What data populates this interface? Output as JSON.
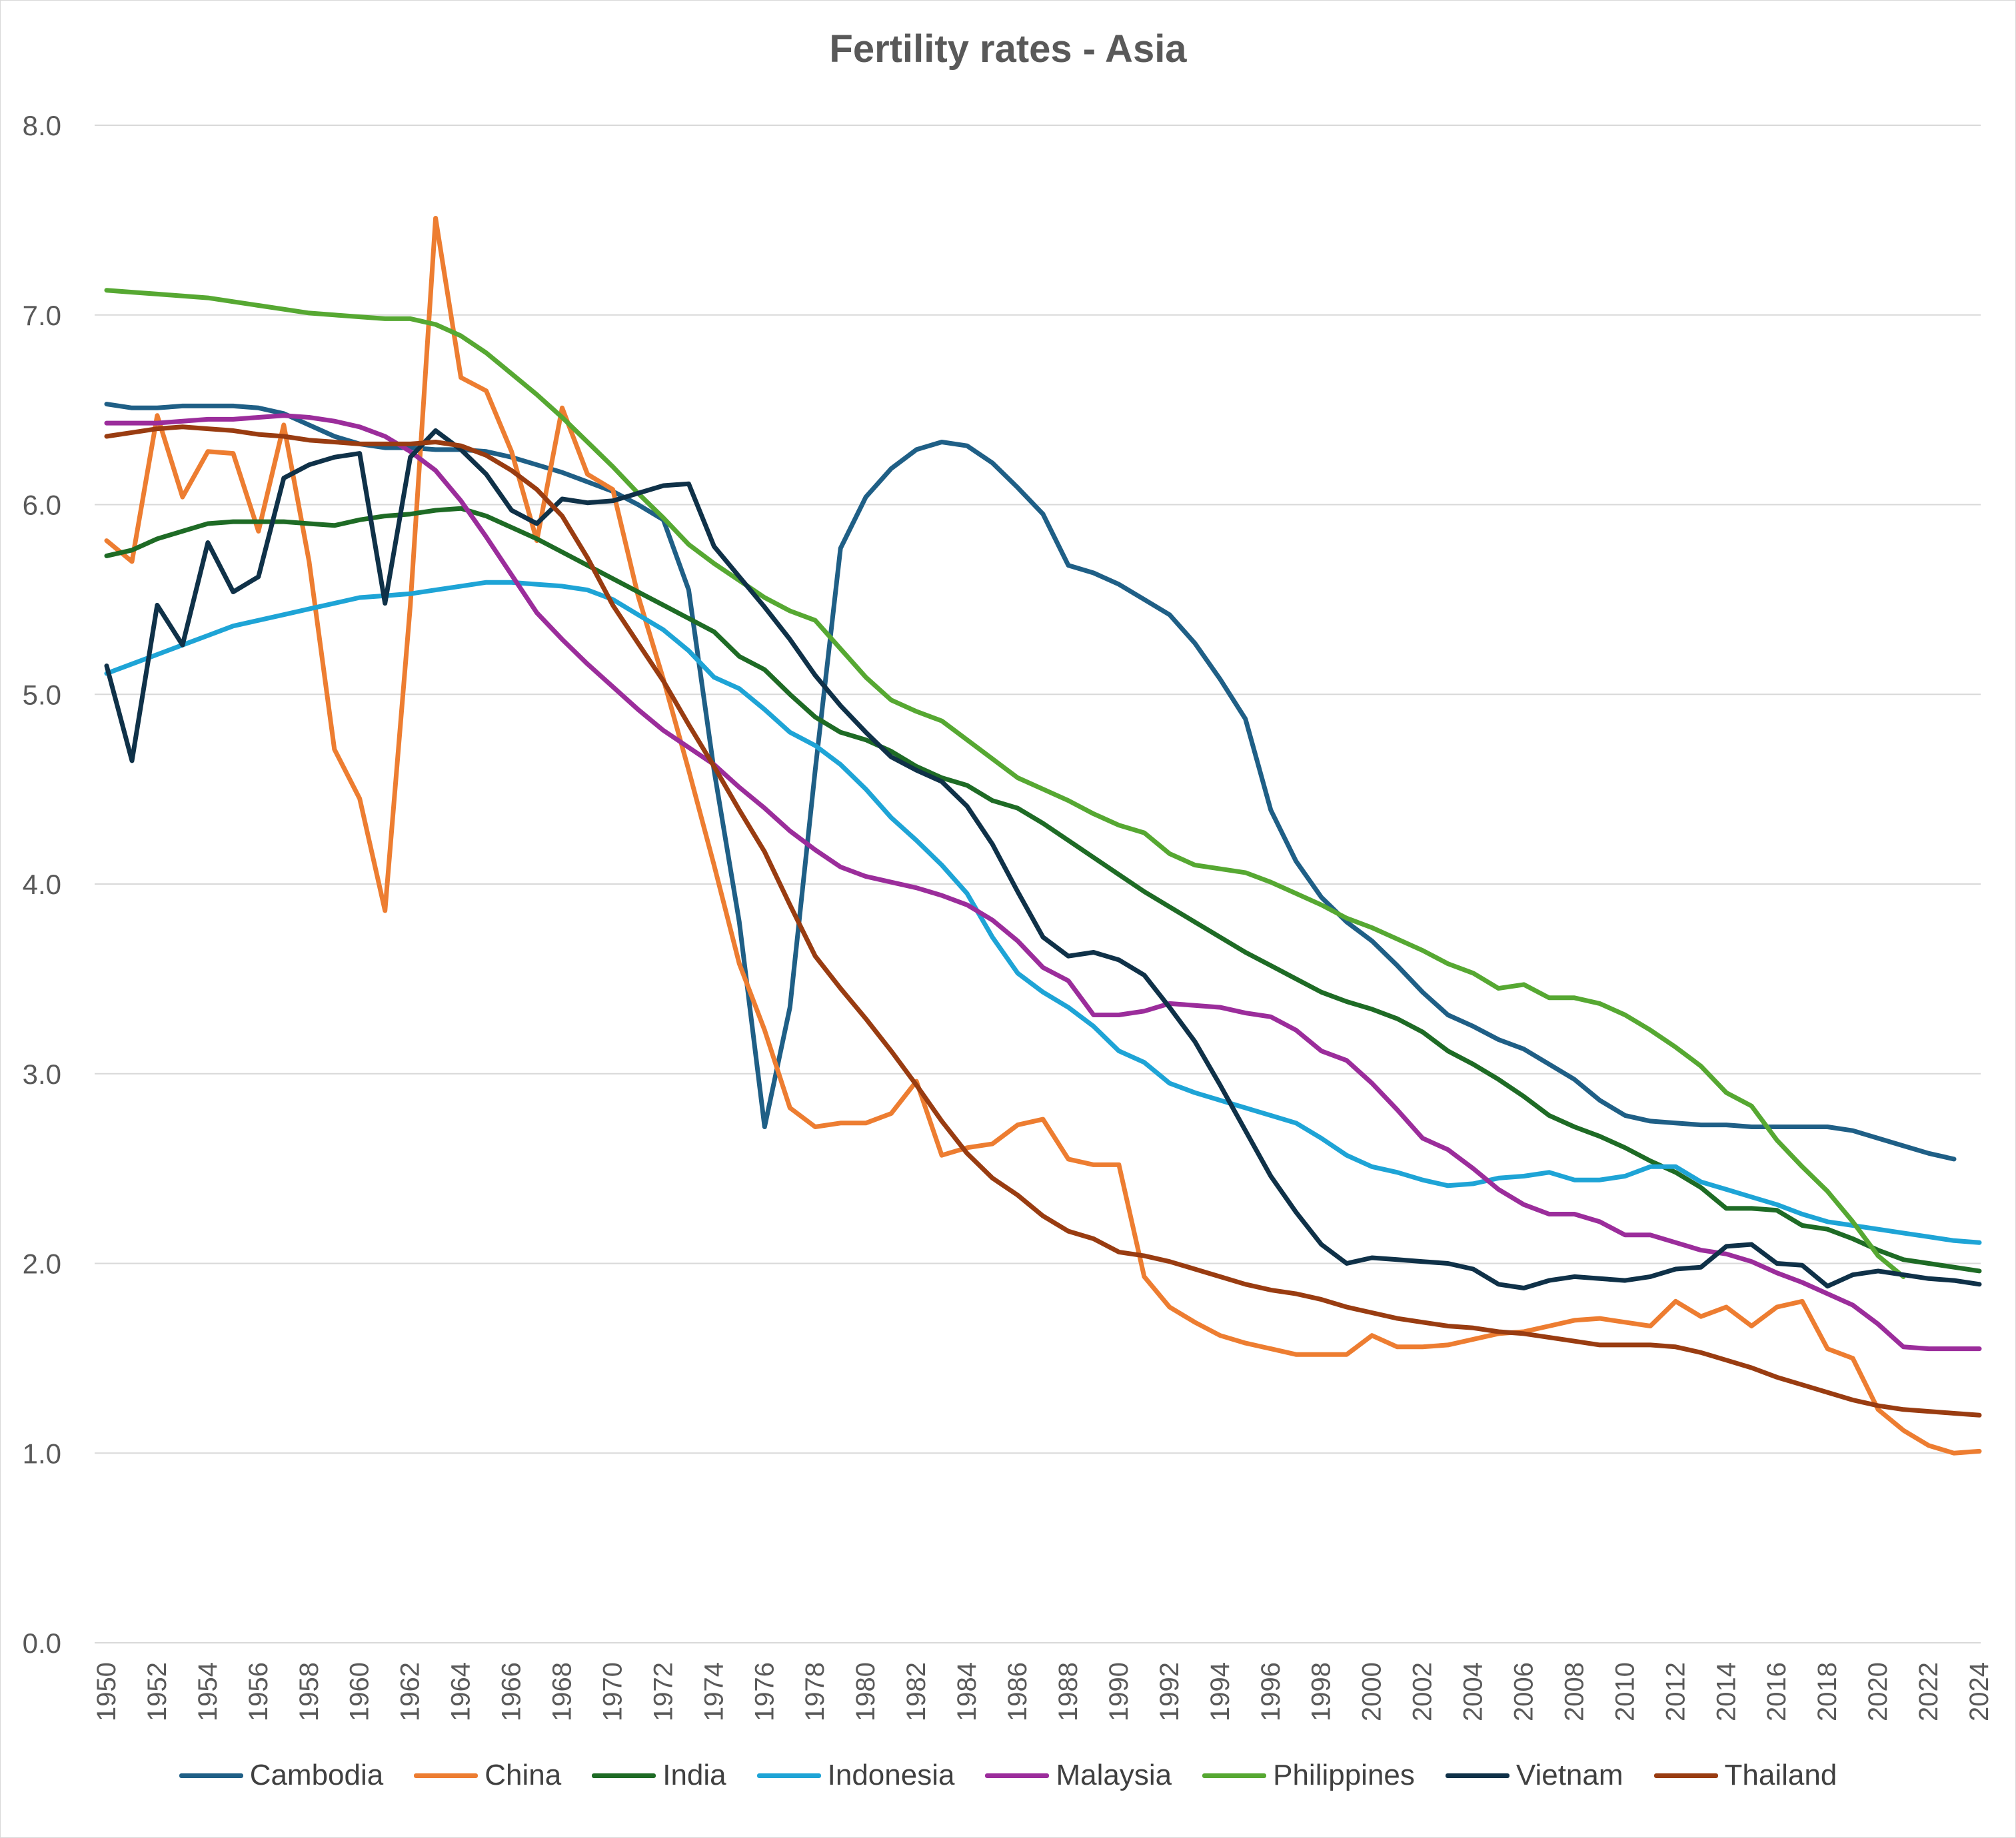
{
  "chart_data": {
    "type": "line",
    "title": "Fertility rates - Asia",
    "xlabel": "",
    "ylabel": "",
    "ylim": [
      0,
      8
    ],
    "y_ticks": [
      "0.0",
      "1.0",
      "2.0",
      "3.0",
      "4.0",
      "5.0",
      "6.0",
      "7.0",
      "8.0"
    ],
    "y_tick_values": [
      0,
      1,
      2,
      3,
      4,
      5,
      6,
      7,
      8
    ],
    "x_start": 1950,
    "x_end": 2024,
    "x_tick_labels": [
      "1950",
      "1952",
      "1954",
      "1956",
      "1958",
      "1960",
      "1962",
      "1964",
      "1966",
      "1968",
      "1970",
      "1972",
      "1974",
      "1976",
      "1978",
      "1980",
      "1982",
      "1984",
      "1986",
      "1988",
      "1990",
      "1992",
      "1994",
      "1996",
      "1998",
      "2000",
      "2002",
      "2004",
      "2006",
      "2008",
      "2010",
      "2012",
      "2014",
      "2016",
      "2018",
      "2020",
      "2022",
      "2024"
    ],
    "legend_position": "bottom",
    "grid": true,
    "series": [
      {
        "name": "Cambodia",
        "color": "#1f5f86",
        "values": [
          6.53,
          6.51,
          6.51,
          6.52,
          6.52,
          6.52,
          6.51,
          6.48,
          6.42,
          6.36,
          6.32,
          6.3,
          6.3,
          6.29,
          6.29,
          6.28,
          6.25,
          6.21,
          6.17,
          6.12,
          6.07,
          6.0,
          5.92,
          5.55,
          4.6,
          3.8,
          2.72,
          3.35,
          4.6,
          5.77,
          6.04,
          6.19,
          6.29,
          6.33,
          6.31,
          6.22,
          6.09,
          5.95,
          5.68,
          5.64,
          5.58,
          5.5,
          5.42,
          5.27,
          5.08,
          4.87,
          4.39,
          4.12,
          3.93,
          3.8,
          3.7,
          3.57,
          3.43,
          3.31,
          3.25,
          3.18,
          3.13,
          3.05,
          2.97,
          2.86,
          2.78,
          2.75,
          2.74,
          2.73,
          2.73,
          2.72,
          2.72,
          2.72,
          2.72,
          2.7,
          2.66,
          2.62,
          2.58,
          2.55
        ]
      },
      {
        "name": "China",
        "color": "#ed7d31",
        "values": [
          5.81,
          5.7,
          6.47,
          6.04,
          6.28,
          6.27,
          5.86,
          6.42,
          5.7,
          4.71,
          4.45,
          3.86,
          5.47,
          7.51,
          6.67,
          6.6,
          6.28,
          5.81,
          6.51,
          6.16,
          6.08,
          5.52,
          5.08,
          4.6,
          4.1,
          3.58,
          3.23,
          2.82,
          2.72,
          2.74,
          2.74,
          2.79,
          2.96,
          2.57,
          2.61,
          2.63,
          2.73,
          2.76,
          2.55,
          2.52,
          2.52,
          1.93,
          1.77,
          1.69,
          1.62,
          1.58,
          1.55,
          1.52,
          1.52,
          1.52,
          1.62,
          1.56,
          1.56,
          1.57,
          1.6,
          1.63,
          1.64,
          1.67,
          1.7,
          1.71,
          1.69,
          1.67,
          1.8,
          1.72,
          1.77,
          1.67,
          1.77,
          1.8,
          1.55,
          1.5,
          1.23,
          1.12,
          1.04,
          1.0,
          1.01
        ]
      },
      {
        "name": "India",
        "color": "#1e6b25",
        "values": [
          5.73,
          5.76,
          5.82,
          5.86,
          5.9,
          5.91,
          5.91,
          5.91,
          5.9,
          5.89,
          5.92,
          5.94,
          5.95,
          5.97,
          5.98,
          5.94,
          5.88,
          5.82,
          5.75,
          5.68,
          5.61,
          5.54,
          5.47,
          5.4,
          5.33,
          5.2,
          5.13,
          5.0,
          4.88,
          4.8,
          4.76,
          4.7,
          4.62,
          4.56,
          4.52,
          4.44,
          4.4,
          4.32,
          4.23,
          4.14,
          4.05,
          3.96,
          3.88,
          3.8,
          3.72,
          3.64,
          3.57,
          3.5,
          3.43,
          3.38,
          3.34,
          3.29,
          3.22,
          3.12,
          3.05,
          2.97,
          2.88,
          2.78,
          2.72,
          2.67,
          2.61,
          2.54,
          2.48,
          2.4,
          2.29,
          2.29,
          2.28,
          2.2,
          2.18,
          2.13,
          2.07,
          2.02,
          2.0,
          1.98,
          1.96
        ]
      },
      {
        "name": "Indonesia",
        "color": "#1ea4d6",
        "values": [
          5.11,
          5.16,
          5.21,
          5.26,
          5.31,
          5.36,
          5.39,
          5.42,
          5.45,
          5.48,
          5.51,
          5.52,
          5.53,
          5.55,
          5.57,
          5.59,
          5.59,
          5.58,
          5.57,
          5.55,
          5.5,
          5.42,
          5.34,
          5.23,
          5.09,
          5.03,
          4.92,
          4.8,
          4.73,
          4.63,
          4.5,
          4.35,
          4.23,
          4.1,
          3.95,
          3.72,
          3.53,
          3.43,
          3.35,
          3.25,
          3.12,
          3.06,
          2.95,
          2.9,
          2.86,
          2.82,
          2.78,
          2.74,
          2.66,
          2.57,
          2.51,
          2.48,
          2.44,
          2.41,
          2.42,
          2.45,
          2.46,
          2.48,
          2.44,
          2.44,
          2.46,
          2.51,
          2.51,
          2.43,
          2.39,
          2.35,
          2.31,
          2.26,
          2.22,
          2.2,
          2.18,
          2.16,
          2.14,
          2.12,
          2.11
        ]
      },
      {
        "name": "Malaysia",
        "color": "#9b2d9b",
        "values": [
          6.43,
          6.43,
          6.43,
          6.44,
          6.45,
          6.45,
          6.46,
          6.47,
          6.46,
          6.44,
          6.41,
          6.36,
          6.28,
          6.18,
          6.02,
          5.83,
          5.63,
          5.43,
          5.29,
          5.16,
          5.04,
          4.92,
          4.81,
          4.72,
          4.63,
          4.51,
          4.4,
          4.28,
          4.18,
          4.09,
          4.04,
          4.01,
          3.98,
          3.94,
          3.89,
          3.81,
          3.7,
          3.56,
          3.49,
          3.31,
          3.31,
          3.33,
          3.37,
          3.36,
          3.35,
          3.32,
          3.3,
          3.23,
          3.12,
          3.07,
          2.95,
          2.81,
          2.66,
          2.6,
          2.5,
          2.39,
          2.31,
          2.26,
          2.26,
          2.22,
          2.15,
          2.15,
          2.11,
          2.07,
          2.05,
          2.01,
          1.95,
          1.9,
          1.84,
          1.78,
          1.68,
          1.56,
          1.55,
          1.55,
          1.55
        ]
      },
      {
        "name": "Philippines",
        "color": "#56a832",
        "values": [
          7.13,
          7.12,
          7.11,
          7.1,
          7.09,
          7.07,
          7.05,
          7.03,
          7.01,
          7.0,
          6.99,
          6.98,
          6.98,
          6.95,
          6.89,
          6.8,
          6.69,
          6.58,
          6.46,
          6.33,
          6.2,
          6.06,
          5.93,
          5.79,
          5.69,
          5.6,
          5.51,
          5.44,
          5.39,
          5.24,
          5.09,
          4.97,
          4.91,
          4.86,
          4.76,
          4.66,
          4.56,
          4.5,
          4.44,
          4.37,
          4.31,
          4.27,
          4.16,
          4.1,
          4.08,
          4.06,
          4.01,
          3.95,
          3.89,
          3.82,
          3.77,
          3.71,
          3.65,
          3.58,
          3.53,
          3.45,
          3.47,
          3.4,
          3.4,
          3.37,
          3.31,
          3.23,
          3.14,
          3.04,
          2.9,
          2.83,
          2.65,
          2.51,
          2.38,
          2.22,
          2.04,
          1.93
        ]
      },
      {
        "name": "Vietnam",
        "color": "#0f3148",
        "values": [
          5.15,
          4.65,
          5.47,
          5.26,
          5.8,
          5.54,
          5.62,
          6.14,
          6.21,
          6.25,
          6.27,
          5.48,
          6.25,
          6.39,
          6.29,
          6.16,
          5.97,
          5.9,
          6.03,
          6.01,
          6.02,
          6.06,
          6.1,
          6.11,
          5.78,
          5.62,
          5.46,
          5.29,
          5.1,
          4.94,
          4.8,
          4.67,
          4.6,
          4.54,
          4.41,
          4.21,
          3.96,
          3.72,
          3.62,
          3.64,
          3.6,
          3.52,
          3.35,
          3.17,
          2.94,
          2.7,
          2.46,
          2.27,
          2.1,
          2.0,
          2.03,
          2.02,
          2.01,
          2.0,
          1.97,
          1.89,
          1.87,
          1.91,
          1.93,
          1.92,
          1.91,
          1.93,
          1.97,
          1.98,
          2.09,
          2.1,
          2.0,
          1.99,
          1.88,
          1.94,
          1.96,
          1.94,
          1.92,
          1.91,
          1.89
        ]
      },
      {
        "name": "Thailand",
        "color": "#993c11",
        "values": [
          6.36,
          6.38,
          6.4,
          6.41,
          6.4,
          6.39,
          6.37,
          6.36,
          6.34,
          6.33,
          6.32,
          6.32,
          6.32,
          6.33,
          6.31,
          6.26,
          6.18,
          6.08,
          5.94,
          5.72,
          5.47,
          5.27,
          5.07,
          4.84,
          4.62,
          4.39,
          4.17,
          3.89,
          3.62,
          3.45,
          3.29,
          3.12,
          2.94,
          2.75,
          2.58,
          2.45,
          2.36,
          2.25,
          2.17,
          2.13,
          2.06,
          2.04,
          2.01,
          1.97,
          1.93,
          1.89,
          1.86,
          1.84,
          1.81,
          1.77,
          1.74,
          1.71,
          1.69,
          1.67,
          1.66,
          1.64,
          1.63,
          1.61,
          1.59,
          1.57,
          1.57,
          1.57,
          1.56,
          1.53,
          1.49,
          1.45,
          1.4,
          1.36,
          1.32,
          1.28,
          1.25,
          1.23,
          1.22,
          1.21,
          1.2
        ]
      }
    ]
  }
}
